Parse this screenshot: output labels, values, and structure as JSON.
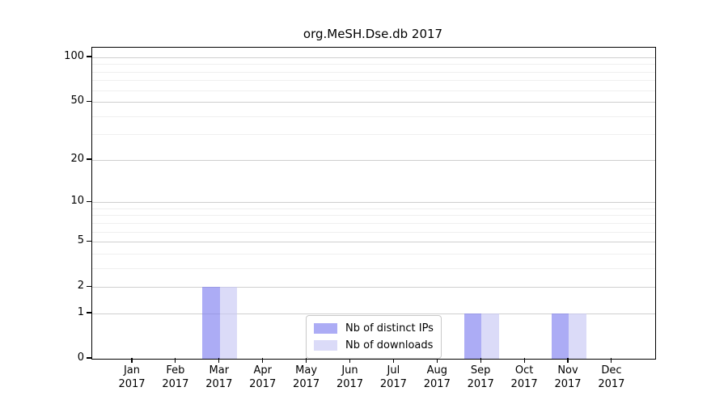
{
  "chart_data": {
    "type": "bar",
    "title": "org.MeSH.Dse.db 2017",
    "x": {
      "months": [
        "Jan",
        "Feb",
        "Mar",
        "Apr",
        "May",
        "Jun",
        "Jul",
        "Aug",
        "Sep",
        "Oct",
        "Nov",
        "Dec"
      ],
      "year": "2017"
    },
    "series": [
      {
        "name": "Nb of distinct IPs",
        "color": "#8080f0",
        "alpha": 0.65,
        "values": [
          0,
          0,
          2,
          0,
          0,
          0,
          0,
          0,
          1,
          0,
          1,
          0
        ]
      },
      {
        "name": "Nb of downloads",
        "color": "#c8c8f5",
        "alpha": 0.65,
        "values": [
          0,
          0,
          2,
          0,
          0,
          0,
          0,
          0,
          1,
          0,
          1,
          0
        ]
      }
    ],
    "y_axis": {
      "scale": "log1p",
      "ticks": [
        0,
        1,
        2,
        5,
        10,
        20,
        50,
        100
      ],
      "minor_ticks": [
        3,
        4,
        6,
        7,
        8,
        9,
        30,
        40,
        60,
        70,
        80,
        90
      ],
      "range": [
        0,
        116
      ]
    },
    "legend": {
      "position": "lower center"
    },
    "grid": true,
    "colors": {
      "major_grid": "#cfcfcf",
      "minor_grid": "#efefef",
      "axis": "#000000",
      "text": "#000000"
    }
  }
}
